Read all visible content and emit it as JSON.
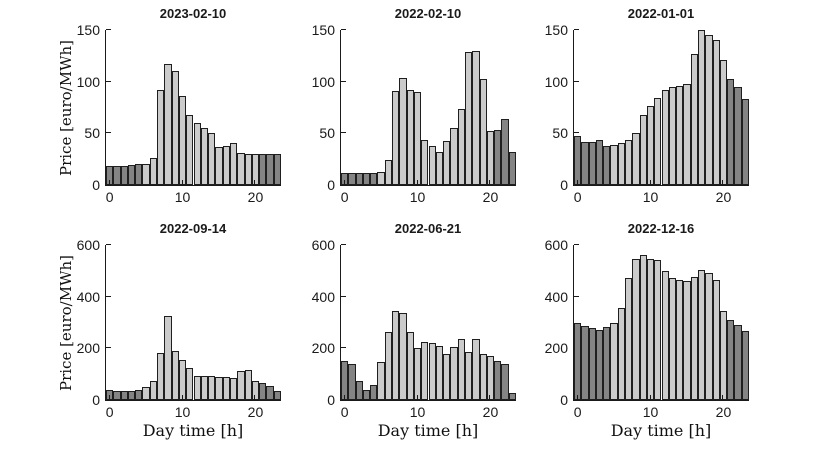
{
  "chart_data": {
    "type": "bar",
    "layout": "2x3 subplots, shared style",
    "x": [
      0,
      1,
      2,
      3,
      4,
      5,
      6,
      7,
      8,
      9,
      10,
      11,
      12,
      13,
      14,
      15,
      16,
      17,
      18,
      19,
      20,
      21,
      22,
      23
    ],
    "xticks": [
      0,
      10,
      20
    ],
    "xlabel": "Day time [h]",
    "ylabel": "Price [euro/MWh]",
    "grid": false,
    "bar_colors": {
      "light": "#cbcbcb",
      "dark": "#848484",
      "edge": "#1f1f1f",
      "dark_hours": [
        0,
        1,
        2,
        3,
        4,
        21,
        22,
        23
      ]
    },
    "subplots": [
      {
        "title": "2023-02-10",
        "ylim": [
          0,
          150
        ],
        "yticks": [
          0,
          50,
          100,
          150
        ],
        "values": [
          18,
          18,
          18,
          19,
          20,
          20,
          26,
          92,
          117,
          110,
          86,
          68,
          60,
          55,
          50,
          37,
          38,
          41,
          31,
          30,
          30,
          30,
          30,
          30
        ]
      },
      {
        "title": "2022-02-10",
        "ylim": [
          0,
          150
        ],
        "yticks": [
          0,
          50,
          100,
          150
        ],
        "values": [
          12,
          12,
          12,
          12,
          12,
          13,
          24,
          91,
          104,
          92,
          90,
          44,
          38,
          32,
          43,
          55,
          74,
          129,
          130,
          103,
          52,
          53,
          64,
          32
        ]
      },
      {
        "title": "2022-01-01",
        "ylim": [
          0,
          150
        ],
        "yticks": [
          0,
          50,
          100,
          150
        ],
        "values": [
          47,
          42,
          42,
          44,
          38,
          39,
          41,
          44,
          50,
          68,
          76,
          84,
          92,
          95,
          96,
          98,
          127,
          150,
          145,
          140,
          121,
          103,
          95,
          83
        ]
      },
      {
        "title": "2022-09-14",
        "ylim": [
          0,
          600
        ],
        "yticks": [
          0,
          200,
          400,
          600
        ],
        "values": [
          38,
          35,
          33,
          33,
          37,
          50,
          73,
          181,
          327,
          188,
          155,
          122,
          93,
          93,
          93,
          90,
          89,
          86,
          113,
          117,
          73,
          64,
          56,
          36
        ]
      },
      {
        "title": "2022-06-21",
        "ylim": [
          0,
          600
        ],
        "yticks": [
          0,
          200,
          400,
          600
        ],
        "values": [
          150,
          140,
          72,
          40,
          60,
          148,
          265,
          345,
          335,
          264,
          200,
          224,
          219,
          211,
          179,
          207,
          236,
          185,
          235,
          179,
          170,
          150,
          140,
          29
        ]
      },
      {
        "title": "2022-12-16",
        "ylim": [
          0,
          600
        ],
        "yticks": [
          0,
          200,
          400,
          600
        ],
        "values": [
          298,
          288,
          280,
          270,
          282,
          298,
          355,
          472,
          545,
          560,
          545,
          542,
          500,
          472,
          466,
          462,
          478,
          505,
          490,
          465,
          345,
          310,
          290,
          268
        ]
      }
    ]
  }
}
